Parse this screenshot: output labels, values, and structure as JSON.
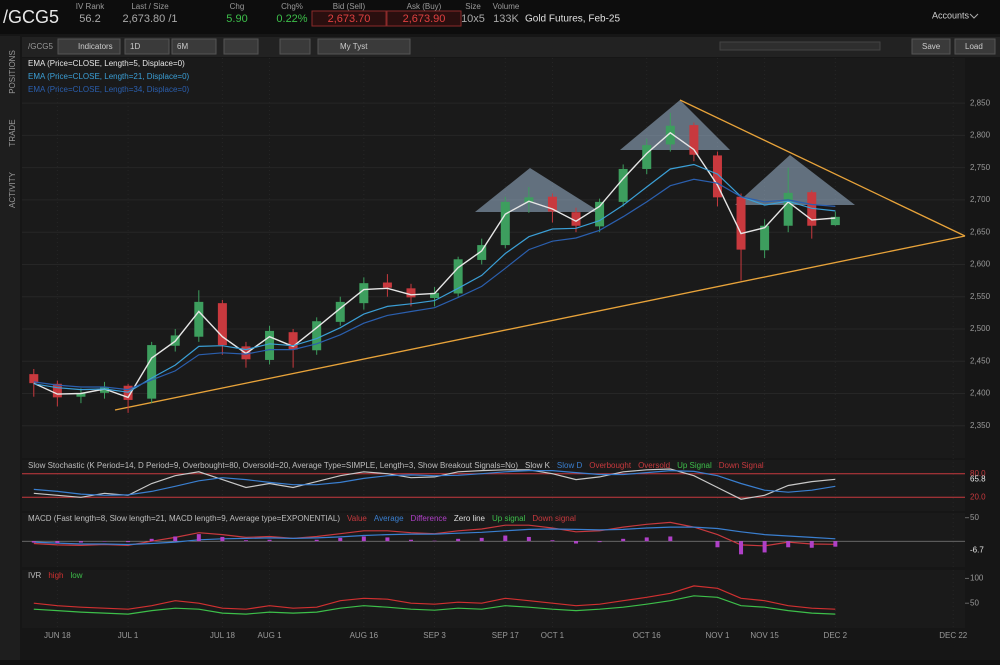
{
  "header": {
    "symbol": "/GCG5",
    "fields": [
      {
        "label": "IV Rank",
        "value": "56.2"
      },
      {
        "label": "Last / Size",
        "value": "2,673.80 /1"
      },
      {
        "label": "Chg",
        "value": "5.90"
      },
      {
        "label": "Chg%",
        "value": "0.22%"
      },
      {
        "label": "Bid (Sell)",
        "value": "2,673.70"
      },
      {
        "label": "Ask (Buy)",
        "value": "2,673.90"
      },
      {
        "label": "Size",
        "value": "10x5"
      },
      {
        "label": "Volume",
        "value": "133K"
      }
    ],
    "description": "Gold Futures, Feb-25",
    "accounts": "Accounts"
  },
  "toolbar": {
    "symbol": "/GCG5",
    "indicators": "Indicators",
    "aggregation": "1D",
    "period": "6M",
    "style": "My Tyst",
    "save": "Save",
    "load": "Load"
  },
  "sidebar": {
    "tabs": [
      "POSITIONS",
      "TRADE",
      "ACTIVITY"
    ]
  },
  "chart_data": [
    {
      "type": "candlestick",
      "categories": [
        null,
        "JUN 18",
        null,
        null,
        "JUL 1",
        null,
        null,
        null,
        "JUL 18",
        null,
        "AUG 1",
        null,
        null,
        null,
        "AUG 16",
        null,
        null,
        "SEP 3",
        null,
        null,
        "SEP 17",
        null,
        "OCT 1",
        null,
        null,
        null,
        "OCT 16",
        null,
        null,
        "NOV 1",
        null,
        "NOV 15",
        null,
        null,
        "DEC 2",
        null,
        null,
        null,
        null,
        "DEC 22"
      ],
      "open": [
        2430,
        2415,
        2395,
        2401,
        2412,
        2392,
        2474,
        2488,
        2540,
        2473,
        2452,
        2495,
        2467,
        2511,
        2540,
        2572,
        2563,
        2548,
        2555,
        2607,
        2630,
        2696,
        2705,
        2681,
        2659,
        2697,
        2748,
        2786,
        2816,
        2769,
        2705,
        2622,
        2660,
        2712,
        2661,
        null,
        null,
        null,
        null,
        null
      ],
      "high": [
        2438,
        2420,
        2408,
        2418,
        2415,
        2480,
        2500,
        2560,
        2545,
        2480,
        2505,
        2500,
        2518,
        2550,
        2580,
        2585,
        2570,
        2565,
        2612,
        2640,
        2705,
        2720,
        2710,
        2688,
        2702,
        2755,
        2795,
        2835,
        2820,
        2775,
        2710,
        2670,
        2750,
        2715,
        2682,
        null,
        null,
        null,
        null,
        null
      ],
      "low": [
        2395,
        2380,
        2385,
        2392,
        2370,
        2385,
        2465,
        2480,
        2460,
        2440,
        2445,
        2440,
        2460,
        2505,
        2530,
        2550,
        2535,
        2535,
        2550,
        2600,
        2625,
        2680,
        2665,
        2650,
        2650,
        2690,
        2740,
        2775,
        2760,
        2690,
        2575,
        2610,
        2650,
        2640,
        2660,
        null,
        null,
        null,
        null,
        null
      ],
      "close": [
        2416,
        2394,
        2400,
        2410,
        2390,
        2475,
        2490,
        2542,
        2475,
        2453,
        2497,
        2468,
        2512,
        2542,
        2571,
        2564,
        2549,
        2556,
        2608,
        2630,
        2697,
        2704,
        2682,
        2660,
        2697,
        2748,
        2785,
        2815,
        2770,
        2704,
        2623,
        2660,
        2711,
        2660,
        2673.8,
        null,
        null,
        null,
        null,
        null
      ],
      "up_color": "#3d9e5e",
      "down_color": "#c8393e",
      "series": [
        {
          "name": "EMA (Price=CLOSE, Length=5, Displace=0)",
          "color": "#e6e6e6",
          "values": [
            2416,
            2399,
            2400,
            2407,
            2394,
            2455,
            2481,
            2527,
            2488,
            2462,
            2488,
            2473,
            2502,
            2532,
            2561,
            2563,
            2553,
            2555,
            2595,
            2621,
            2678,
            2698,
            2686,
            2667,
            2690,
            2733,
            2772,
            2804,
            2778,
            2723,
            2648,
            2657,
            2697,
            2669,
            2672,
            null,
            null,
            null,
            null,
            null
          ]
        },
        {
          "name": "EMA (Price=CLOSE, Length=21, Displace=0)",
          "color": "#3b9fd6",
          "values": [
            2415,
            2409,
            2406,
            2407,
            2402,
            2424,
            2444,
            2473,
            2474,
            2468,
            2477,
            2474,
            2485,
            2502,
            2523,
            2535,
            2539,
            2544,
            2563,
            2583,
            2617,
            2643,
            2655,
            2656,
            2668,
            2692,
            2720,
            2748,
            2755,
            2740,
            2705,
            2692,
            2698,
            2687,
            2683,
            null,
            null,
            null,
            null,
            null
          ]
        },
        {
          "name": "EMA (Price=CLOSE, Length=34, Displace=0)",
          "color": "#2b5fae",
          "values": [
            2418,
            2413,
            2410,
            2410,
            2406,
            2421,
            2435,
            2460,
            2463,
            2461,
            2468,
            2468,
            2477,
            2491,
            2509,
            2521,
            2527,
            2533,
            2549,
            2566,
            2594,
            2623,
            2636,
            2641,
            2653,
            2674,
            2697,
            2722,
            2732,
            2726,
            2705,
            2697,
            2700,
            2693,
            2690,
            null,
            null,
            null,
            null,
            null
          ]
        }
      ],
      "ylim": [
        2300,
        2920
      ],
      "yticks": [
        {
          "value": 2350,
          "label": "2,350"
        },
        {
          "value": 2400,
          "label": "2,400"
        },
        {
          "value": 2450,
          "label": "2,450"
        },
        {
          "value": 2500,
          "label": "2,500"
        },
        {
          "value": 2550,
          "label": "2,550"
        },
        {
          "value": 2600,
          "label": "2,600"
        },
        {
          "value": 2650,
          "label": "2,650"
        },
        {
          "value": 2700,
          "label": "2,700"
        },
        {
          "value": 2750,
          "label": "2,750"
        },
        {
          "value": 2800,
          "label": "2,800"
        },
        {
          "value": 2850,
          "label": "2,850"
        }
      ],
      "grid": true
    },
    {
      "type": "line",
      "title": "Slow Stochastic (K Period=14, D Period=9, Overbought=80, Oversold=20, Average Type=SIMPLE, Length=3, Show Breakout Signals=No)",
      "series": [
        {
          "name": "Slow K",
          "color": "#c8c8c8",
          "values": [
            30,
            25,
            20,
            30,
            25,
            55,
            75,
            85,
            65,
            45,
            55,
            45,
            60,
            75,
            85,
            80,
            70,
            72,
            85,
            88,
            90,
            90,
            80,
            65,
            72,
            85,
            90,
            92,
            75,
            45,
            15,
            25,
            50,
            60,
            65.8,
            null,
            null,
            null,
            null,
            null
          ]
        },
        {
          "name": "Slow D",
          "color": "#3a7fd0",
          "values": [
            40,
            35,
            28,
            25,
            26,
            35,
            48,
            62,
            70,
            65,
            58,
            52,
            52,
            58,
            68,
            75,
            77,
            75,
            76,
            80,
            85,
            88,
            88,
            83,
            78,
            78,
            83,
            88,
            86,
            75,
            55,
            38,
            33,
            38,
            48,
            null,
            null,
            null,
            null,
            null
          ]
        }
      ],
      "levels": [
        {
          "name": "Overbought",
          "value": 80,
          "label": "80.0",
          "color": "#c8393e"
        },
        {
          "name": "Oversold",
          "value": 20,
          "label": "20.0",
          "color": "#c8393e"
        }
      ],
      "signals": [
        {
          "name": "Up Signal",
          "color": "#3dbf4a"
        },
        {
          "name": "Down Signal",
          "color": "#c8393e"
        }
      ],
      "ylim": [
        -15,
        115
      ]
    },
    {
      "type": "line",
      "title": "MACD (Fast length=8, Slow length=21, MACD length=9, Average type=EXPONENTIAL)",
      "series": [
        {
          "name": "Value",
          "color": "#c8393e",
          "values": [
            -5,
            -8,
            -9,
            -7,
            -9,
            0,
            8,
            18,
            14,
            8,
            10,
            6,
            10,
            16,
            22,
            22,
            18,
            16,
            22,
            26,
            34,
            34,
            28,
            20,
            22,
            30,
            36,
            40,
            30,
            14,
            -8,
            -10,
            -2,
            -6,
            -6.7,
            null,
            null,
            null,
            null,
            null
          ]
        },
        {
          "name": "Average",
          "color": "#3a7fd0",
          "values": [
            -2,
            -4,
            -6,
            -6,
            -7,
            -5,
            -2,
            3,
            5,
            6,
            7,
            6,
            7,
            9,
            12,
            14,
            15,
            15,
            17,
            19,
            22,
            25,
            26,
            25,
            24,
            25,
            28,
            30,
            30,
            27,
            20,
            14,
            11,
            8,
            5,
            null,
            null,
            null,
            null,
            null
          ]
        },
        {
          "name": "Difference",
          "color": "#b040c8",
          "style": "histogram",
          "values": [
            -3,
            -4,
            -3,
            -1,
            -2,
            5,
            10,
            15,
            9,
            2,
            3,
            0,
            3,
            7,
            10,
            8,
            3,
            1,
            5,
            7,
            12,
            9,
            2,
            -5,
            -2,
            5,
            8,
            10,
            0,
            -13,
            -28,
            -24,
            -13,
            -14,
            -11.7,
            null,
            null,
            null,
            null,
            null
          ]
        }
      ],
      "zero_line": {
        "name": "Zero line",
        "value": 0,
        "color": "#b0b0b0"
      },
      "signals": [
        {
          "name": "Up signal",
          "color": "#3dbf4a"
        },
        {
          "name": "Down signal",
          "color": "#c8393e"
        }
      ],
      "ylim": [
        -55,
        60
      ],
      "yticks": [
        50
      ]
    },
    {
      "type": "line",
      "title": "IVR",
      "series": [
        {
          "name": "high",
          "color": "#d03030",
          "values": [
            50,
            45,
            42,
            40,
            38,
            45,
            55,
            50,
            40,
            38,
            45,
            40,
            42,
            55,
            60,
            58,
            50,
            48,
            52,
            50,
            60,
            55,
            50,
            45,
            48,
            55,
            62,
            70,
            85,
            80,
            60,
            55,
            45,
            40,
            38,
            null,
            null,
            null,
            null,
            null
          ]
        },
        {
          "name": "low",
          "color": "#3dbf4a",
          "values": [
            38,
            35,
            32,
            30,
            28,
            35,
            40,
            38,
            30,
            28,
            32,
            30,
            32,
            40,
            45,
            42,
            38,
            36,
            40,
            38,
            45,
            42,
            38,
            35,
            38,
            42,
            48,
            55,
            65,
            62,
            45,
            42,
            35,
            30,
            28,
            null,
            null,
            null,
            null,
            null
          ]
        }
      ],
      "ylim": [
        0,
        117
      ],
      "yticks": [
        50,
        100
      ]
    }
  ]
}
